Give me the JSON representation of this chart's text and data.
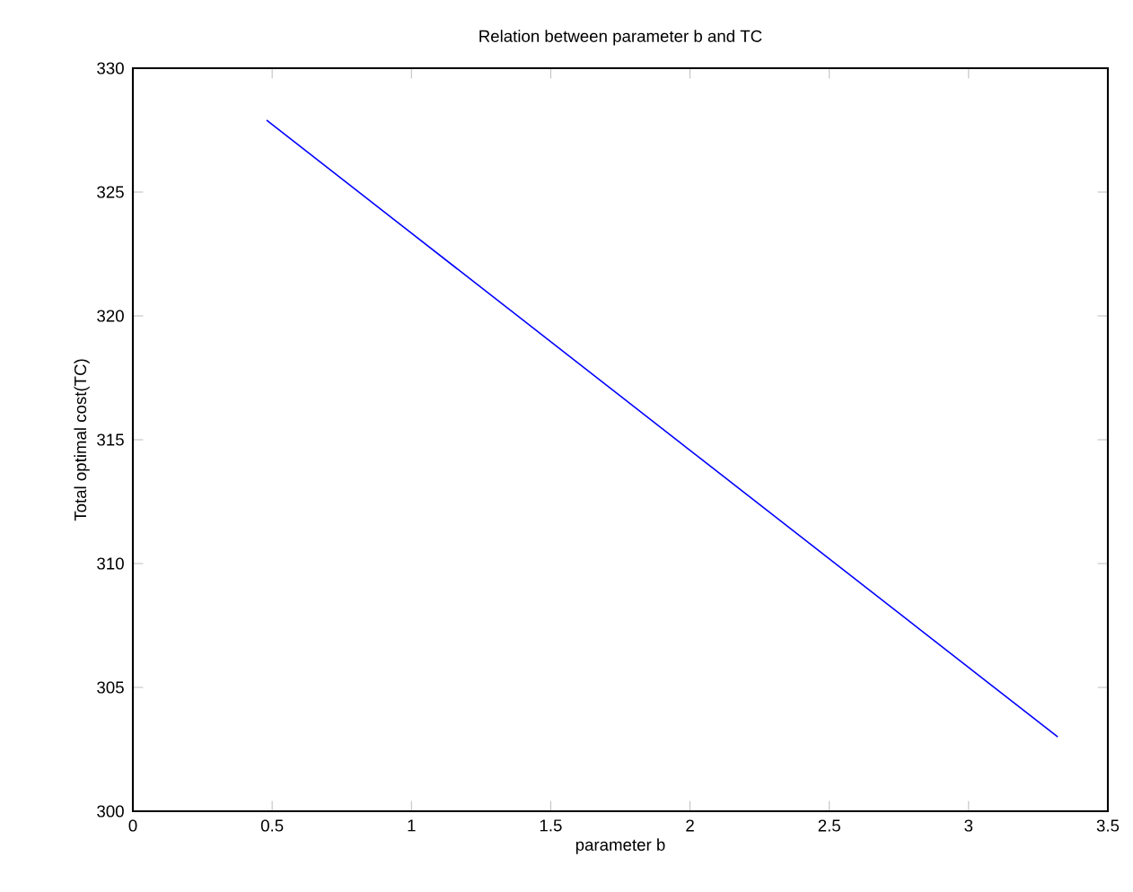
{
  "chart_data": {
    "type": "line",
    "title": "Relation between parameter b and TC",
    "xlabel": "parameter b",
    "ylabel": "Total optimal cost(TC)",
    "series": [
      {
        "color": "#0000ff",
        "x": [
          0.48,
          3.32
        ],
        "values": [
          327.9,
          303.0
        ]
      }
    ],
    "xlim": [
      0,
      3.5
    ],
    "ylim": [
      300,
      330
    ],
    "xticks": [
      0,
      0.5,
      1,
      1.5,
      2,
      2.5,
      3,
      3.5
    ],
    "yticks": [
      300,
      305,
      310,
      315,
      320,
      325,
      330
    ]
  }
}
